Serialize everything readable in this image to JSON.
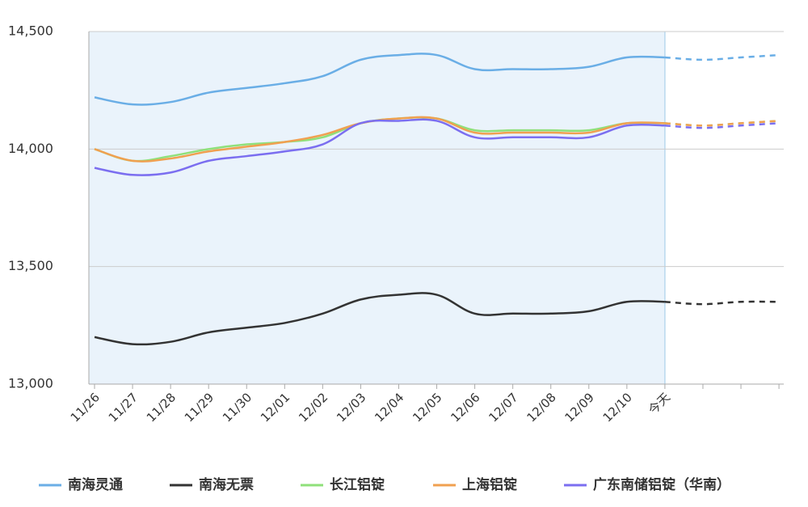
{
  "chart_data": {
    "type": "line",
    "categories": [
      "11/26",
      "11/27",
      "11/28",
      "11/29",
      "11/30",
      "12/01",
      "12/02",
      "12/03",
      "12/04",
      "12/05",
      "12/06",
      "12/07",
      "12/08",
      "12/09",
      "12/10",
      "今天",
      null,
      null,
      null
    ],
    "series": [
      {
        "name": "南海灵通",
        "color": "#6aaee6",
        "values": [
          14220,
          14190,
          14200,
          14240,
          14260,
          14280,
          14310,
          14380,
          14400,
          14400,
          14340,
          14340,
          14340,
          14350,
          14390,
          14390,
          14380,
          14390,
          14400
        ]
      },
      {
        "name": "南海无票",
        "color": "#333333",
        "values": [
          13200,
          13170,
          13180,
          13220,
          13240,
          13260,
          13300,
          13360,
          13380,
          13380,
          13300,
          13300,
          13300,
          13310,
          13350,
          13350,
          13340,
          13350,
          13350
        ]
      },
      {
        "name": "长江铝锭",
        "color": "#8fe07a",
        "values": [
          14000,
          13950,
          13970,
          14000,
          14020,
          14030,
          14050,
          14110,
          14130,
          14130,
          14080,
          14080,
          14080,
          14080,
          14110,
          14110,
          14100,
          14110,
          14120
        ]
      },
      {
        "name": "上海铝锭",
        "color": "#f0a050",
        "values": [
          14000,
          13950,
          13960,
          13990,
          14010,
          14030,
          14060,
          14110,
          14130,
          14130,
          14070,
          14070,
          14070,
          14070,
          14110,
          14110,
          14100,
          14110,
          14120
        ]
      },
      {
        "name": "广东南储铝锭（华南）",
        "color": "#7b6ef0",
        "values": [
          13920,
          13890,
          13900,
          13950,
          13970,
          13990,
          14020,
          14110,
          14120,
          14120,
          14050,
          14050,
          14050,
          14050,
          14100,
          14100,
          14090,
          14100,
          14110
        ]
      }
    ],
    "ylim": [
      13000,
      14500
    ],
    "yticks": [
      {
        "value": 13000,
        "label": "13,000"
      },
      {
        "value": 13500,
        "label": "13,500"
      },
      {
        "value": 14000,
        "label": "14,000"
      },
      {
        "value": 14500,
        "label": "14,500"
      }
    ],
    "grid": true,
    "dashed_from_index": 15,
    "legend": "bottom"
  }
}
